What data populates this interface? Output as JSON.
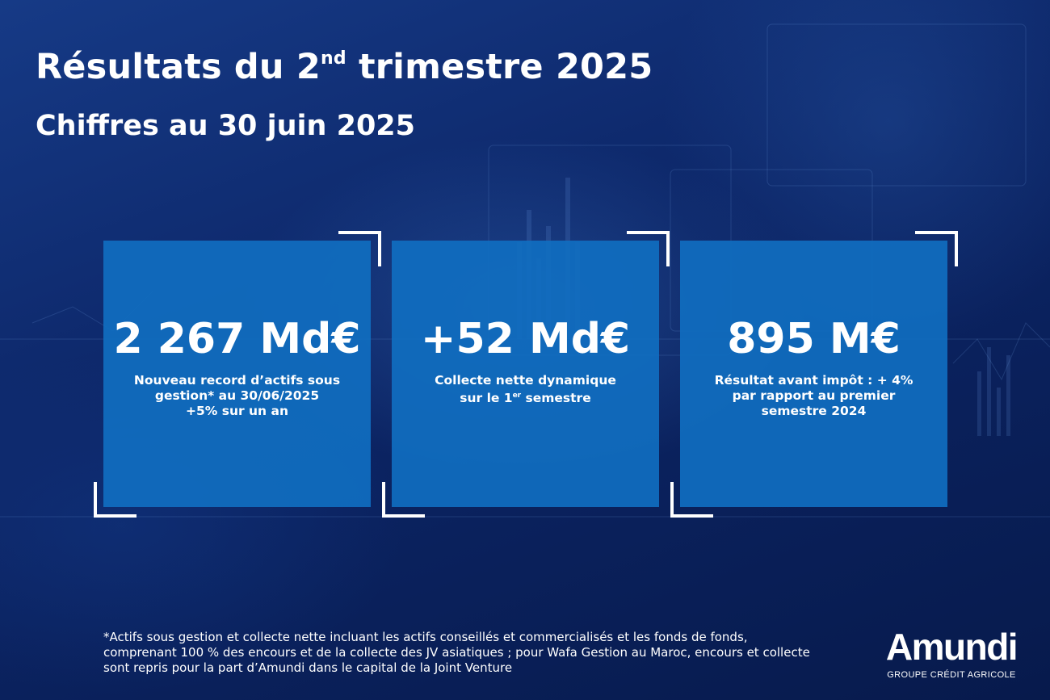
{
  "header": {
    "title_prefix": "Résultats du 2",
    "title_sup": "nd",
    "title_suffix": " trimestre 2025",
    "subtitle": "Chiffres au 30 juin 2025"
  },
  "cards": [
    {
      "value": "2 267 Md€",
      "desc_line1": "Nouveau record d’actifs sous",
      "desc_line2": "gestion* au 30/06/2025",
      "desc_line3": "+5% sur un an"
    },
    {
      "value": "+52 Md€",
      "desc_line1": "Collecte nette dynamique",
      "desc_line2_prefix": "sur le 1",
      "desc_line2_sup": "er",
      "desc_line2_suffix": " semestre"
    },
    {
      "value": "895 M€",
      "desc_line1": "Résultat avant impôt : + 4%",
      "desc_line2": "par rapport au premier",
      "desc_line3": "semestre 2024"
    }
  ],
  "footnote": "*Actifs sous gestion et collecte nette incluant les actifs conseillés et commercialisés et les fonds de fonds, comprenant 100 % des encours et de la collecte des JV asiatiques ; pour Wafa Gestion au Maroc, encours et collecte sont repris pour la part d’Amundi dans le capital de la Joint Venture",
  "logo": {
    "word": "Amundi",
    "tagline": "GROUPE CRÉDIT AGRICOLE"
  },
  "colors": {
    "background": "#0c2566",
    "card": "#106ec0",
    "text": "#ffffff"
  }
}
